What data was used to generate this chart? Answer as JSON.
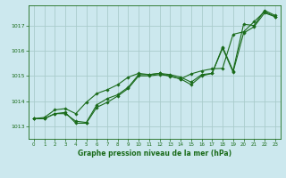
{
  "title": "Graphe pression niveau de la mer (hPa)",
  "bg_color": "#cce8ee",
  "grid_color": "#aacccc",
  "line_color": "#1a6b1a",
  "marker_color": "#1a6b1a",
  "xlim": [
    -0.5,
    23.5
  ],
  "ylim": [
    1012.5,
    1017.8
  ],
  "yticks": [
    1013,
    1014,
    1015,
    1016,
    1017
  ],
  "xticks": [
    0,
    1,
    2,
    3,
    4,
    5,
    6,
    7,
    8,
    9,
    10,
    11,
    12,
    13,
    14,
    15,
    16,
    17,
    18,
    19,
    20,
    21,
    22,
    23
  ],
  "series1": [
    1013.3,
    1013.3,
    1013.5,
    1013.5,
    1013.2,
    1013.15,
    1013.85,
    1014.1,
    1014.25,
    1014.55,
    1015.05,
    1015.05,
    1015.1,
    1015.05,
    1014.95,
    1014.75,
    1015.05,
    1015.1,
    1016.15,
    1015.2,
    1017.05,
    1017.0,
    1017.6,
    1017.4
  ],
  "series2": [
    1013.3,
    1013.35,
    1013.65,
    1013.7,
    1013.5,
    1013.95,
    1014.3,
    1014.45,
    1014.65,
    1014.95,
    1015.1,
    1015.05,
    1015.1,
    1014.98,
    1014.88,
    1015.08,
    1015.2,
    1015.28,
    1015.3,
    1016.65,
    1016.75,
    1017.15,
    1017.55,
    1017.35
  ],
  "series3": [
    1013.3,
    1013.3,
    1013.5,
    1013.55,
    1013.12,
    1013.12,
    1013.75,
    1013.95,
    1014.2,
    1014.5,
    1015.0,
    1015.0,
    1015.05,
    1015.0,
    1014.88,
    1014.65,
    1015.0,
    1015.1,
    1016.1,
    1015.15,
    1016.7,
    1016.95,
    1017.5,
    1017.35
  ]
}
